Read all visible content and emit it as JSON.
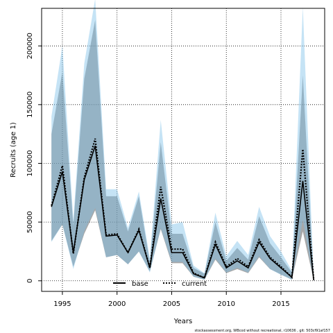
{
  "chart_data": {
    "type": "line",
    "xlabel": "Years",
    "ylabel": "Recruits (age 1)",
    "footnote": "stockassessment.org,  WBcod  without  recreational,  r10636 ,  git:  503cf91af157",
    "xlim": [
      1993.1,
      2019.0
    ],
    "ylim": [
      -9000,
      232000
    ],
    "xticks": [
      1995,
      2000,
      2005,
      2010,
      2015
    ],
    "yticks": [
      0,
      50000,
      100000,
      150000,
      200000
    ],
    "grid": true,
    "legend_position": "bottom-center",
    "x": [
      1994,
      1995,
      1996,
      1997,
      1998,
      1999,
      2000,
      2001,
      2002,
      2003,
      2004,
      2005,
      2006,
      2007,
      2008,
      2009,
      2010,
      2011,
      2012,
      2013,
      2014,
      2015,
      2016,
      2017,
      2018
    ],
    "series": [
      {
        "name": "base",
        "style": "solid",
        "color": "#000000",
        "band_color": "#606060",
        "values": [
          63000,
          93000,
          24000,
          86000,
          115000,
          38000,
          39000,
          24000,
          43000,
          11000,
          70000,
          24000,
          24000,
          6000,
          2500,
          31000,
          11000,
          17000,
          11000,
          33000,
          19000,
          11000,
          3000,
          85000,
          500
        ],
        "lower": [
          34000,
          48000,
          12000,
          40000,
          60000,
          20000,
          22000,
          14000,
          25000,
          8000,
          44000,
          15000,
          15000,
          3500,
          1000,
          18000,
          6500,
          10000,
          6500,
          20000,
          10000,
          5500,
          1000,
          42000,
          0
        ],
        "upper": [
          125000,
          178000,
          47000,
          172000,
          222000,
          72000,
          72000,
          42000,
          72000,
          16000,
          118000,
          40000,
          40000,
          11000,
          6000,
          50000,
          17000,
          28000,
          18000,
          55000,
          32000,
          20000,
          7000,
          175000,
          1500
        ]
      },
      {
        "name": "current",
        "style": "dotted",
        "color": "#000000",
        "band_color": "#7ec2e8",
        "values": [
          64000,
          98000,
          23000,
          88000,
          121000,
          39000,
          40000,
          24000,
          44000,
          11000,
          80000,
          27000,
          27000,
          6500,
          2500,
          33000,
          12000,
          19000,
          12000,
          35000,
          20000,
          12000,
          3000,
          112000,
          500
        ],
        "lower": [
          33000,
          48000,
          10000,
          42000,
          62000,
          20000,
          22000,
          14000,
          25000,
          7000,
          45000,
          16000,
          16000,
          3500,
          1000,
          19000,
          7000,
          11000,
          7000,
          21000,
          10000,
          5000,
          1000,
          52000,
          0
        ],
        "upper": [
          140000,
          200000,
          52000,
          185000,
          240000,
          78000,
          78000,
          45000,
          76000,
          19000,
          137000,
          48000,
          50000,
          13000,
          6500,
          58000,
          21000,
          34000,
          22000,
          63000,
          38000,
          25000,
          8500,
          233000,
          1500
        ]
      }
    ]
  }
}
